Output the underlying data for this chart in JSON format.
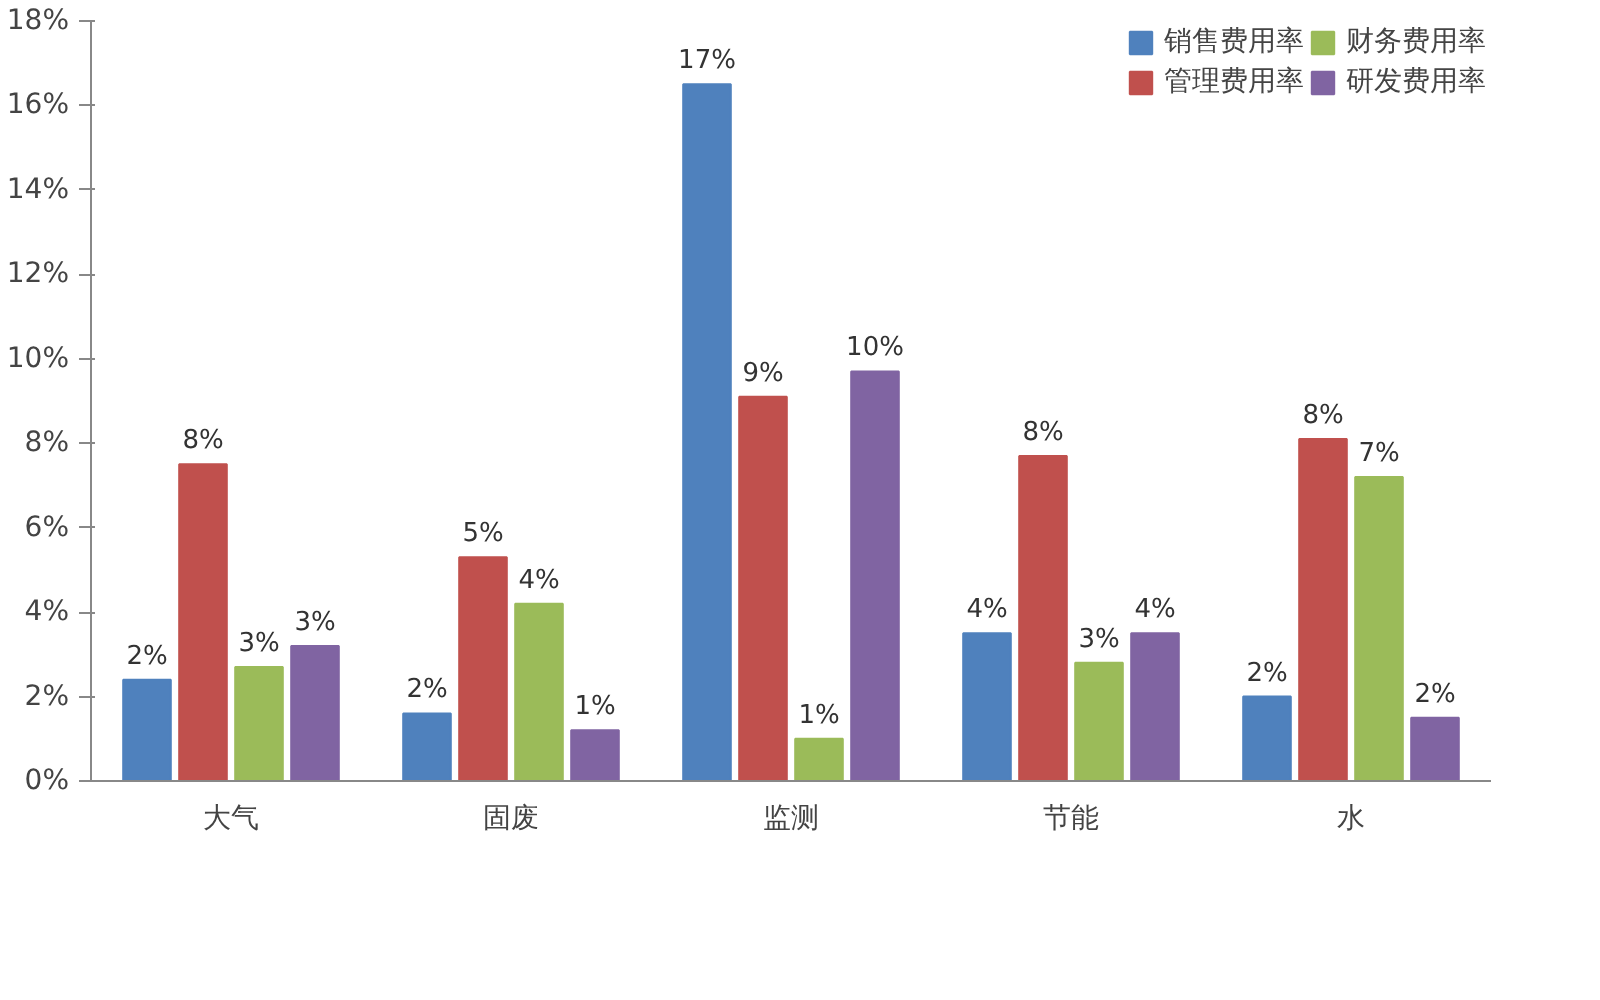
{
  "chart_data": {
    "type": "bar",
    "categories": [
      "大气",
      "固废",
      "监测",
      "节能",
      "水"
    ],
    "series": [
      {
        "name": "销售费用率",
        "color": "#4f81bd",
        "values": [
          2.4,
          1.6,
          16.5,
          3.5,
          2.0
        ],
        "value_labels": [
          "2%",
          "2%",
          "17%",
          "4%",
          "2%"
        ]
      },
      {
        "name": "管理费用率",
        "color": "#c0504d",
        "values": [
          7.5,
          5.3,
          9.1,
          7.7,
          8.1
        ],
        "value_labels": [
          "8%",
          "5%",
          "9%",
          "8%",
          "8%"
        ]
      },
      {
        "name": "财务费用率",
        "color": "#9bbb59",
        "values": [
          2.7,
          4.2,
          1.0,
          2.8,
          7.2
        ],
        "value_labels": [
          "3%",
          "4%",
          "1%",
          "3%",
          "7%"
        ]
      },
      {
        "name": "研发费用率",
        "color": "#8064a2",
        "values": [
          3.2,
          1.2,
          9.7,
          3.5,
          1.5
        ],
        "value_labels": [
          "3%",
          "1%",
          "10%",
          "4%",
          "2%"
        ]
      }
    ],
    "ylim": [
      0,
      18
    ],
    "yticks": [
      {
        "value": 0,
        "label": "0%"
      },
      {
        "value": 2,
        "label": "2%"
      },
      {
        "value": 4,
        "label": "4%"
      },
      {
        "value": 6,
        "label": "6%"
      },
      {
        "value": 8,
        "label": "8%"
      },
      {
        "value": 10,
        "label": "10%"
      },
      {
        "value": 12,
        "label": "12%"
      },
      {
        "value": 14,
        "label": "14%"
      },
      {
        "value": 16,
        "label": "16%"
      },
      {
        "value": 18,
        "label": "18%"
      }
    ],
    "grid": false,
    "legend": "top right"
  }
}
